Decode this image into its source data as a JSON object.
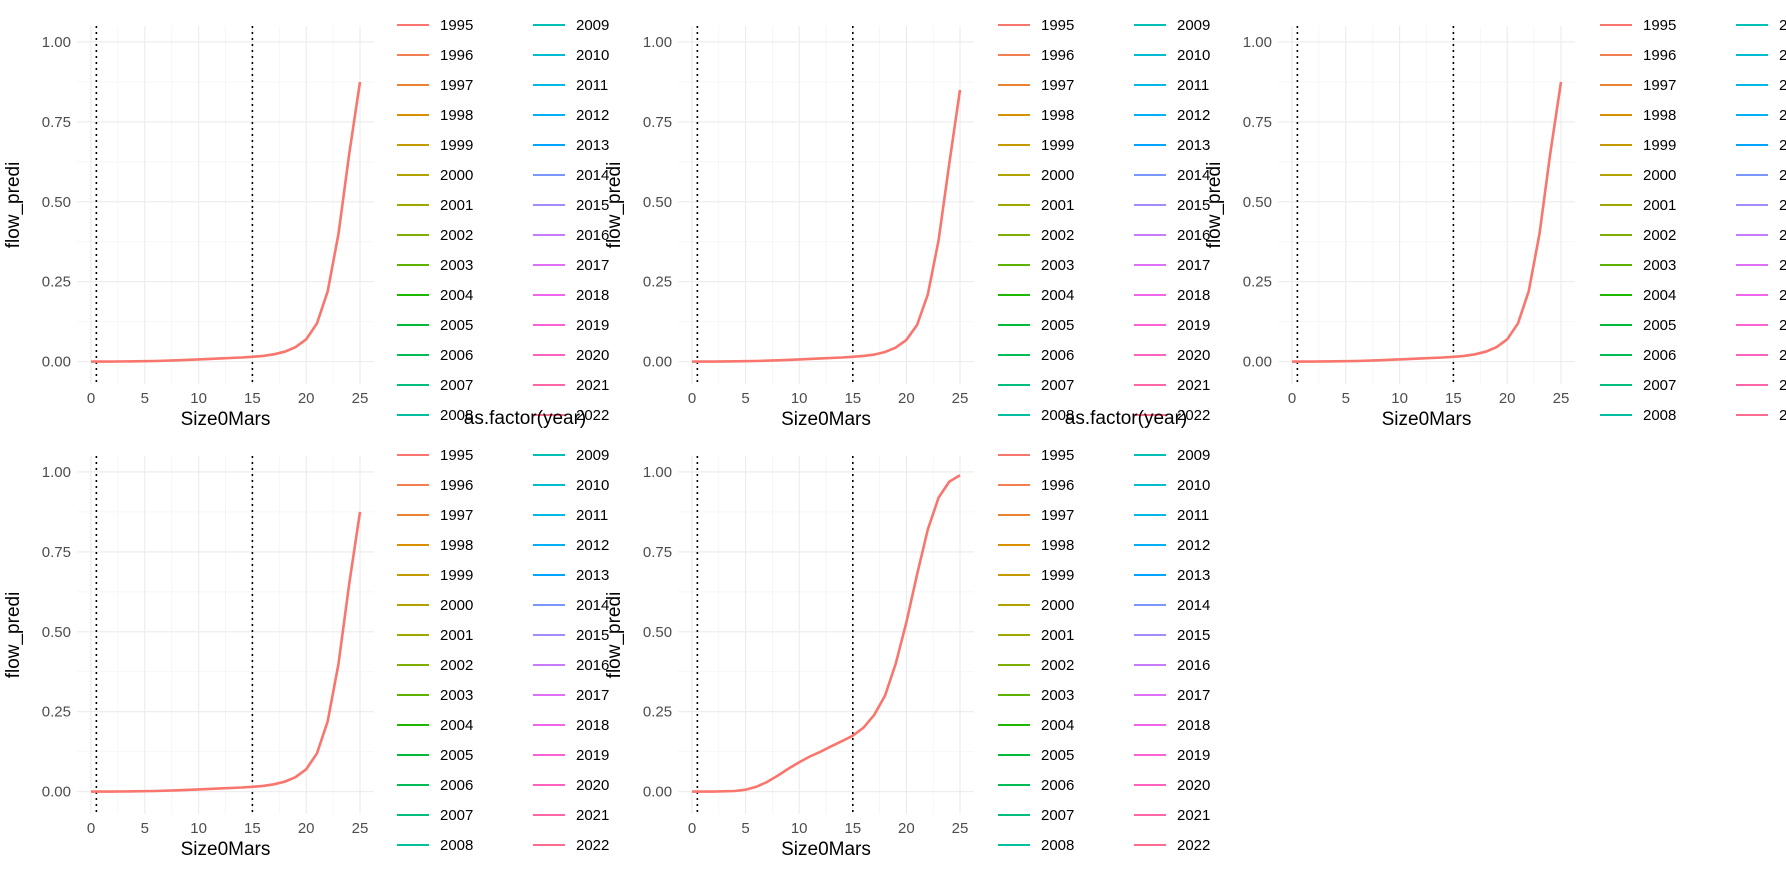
{
  "chart_data": [
    {
      "type": "line",
      "xlabel": "Size0Mars",
      "ylabel": "flow_predi",
      "xlim": [
        0,
        25
      ],
      "ylim": [
        0,
        1
      ],
      "xticks": [
        "0",
        "5",
        "10",
        "15",
        "20",
        "25"
      ],
      "yticks": [
        "0.00",
        "0.25",
        "0.50",
        "0.75",
        "1.00"
      ],
      "grid": true,
      "vlines": [
        0.5,
        15
      ],
      "series": [
        {
          "color": "#F8766D",
          "x": [
            0,
            2,
            4,
            6,
            8,
            10,
            12,
            14,
            15,
            16,
            17,
            18,
            19,
            20,
            21,
            22,
            23,
            24,
            25
          ],
          "y": [
            0,
            0,
            0.001,
            0.002,
            0.004,
            0.007,
            0.01,
            0.013,
            0.015,
            0.018,
            0.023,
            0.031,
            0.045,
            0.07,
            0.12,
            0.22,
            0.4,
            0.65,
            0.875
          ]
        }
      ]
    },
    {
      "type": "line",
      "xlabel": "Size0Mars",
      "ylabel": "flow_predi",
      "xlim": [
        0,
        25
      ],
      "ylim": [
        0,
        1
      ],
      "xticks": [
        "0",
        "5",
        "10",
        "15",
        "20",
        "25"
      ],
      "yticks": [
        "0.00",
        "0.25",
        "0.50",
        "0.75",
        "1.00"
      ],
      "grid": true,
      "vlines": [
        0.5,
        15
      ],
      "series": [
        {
          "color": "#F8766D",
          "x": [
            0,
            2,
            4,
            6,
            8,
            10,
            12,
            14,
            15,
            16,
            17,
            18,
            19,
            20,
            21,
            22,
            23,
            24,
            25
          ],
          "y": [
            0,
            0,
            0.001,
            0.002,
            0.004,
            0.007,
            0.01,
            0.013,
            0.015,
            0.018,
            0.022,
            0.03,
            0.044,
            0.068,
            0.115,
            0.21,
            0.38,
            0.62,
            0.85
          ]
        }
      ]
    },
    {
      "type": "line",
      "xlabel": "Size0Mars",
      "ylabel": "flow_predi",
      "xlim": [
        0,
        25
      ],
      "ylim": [
        0,
        1
      ],
      "xticks": [
        "0",
        "5",
        "10",
        "15",
        "20",
        "25"
      ],
      "yticks": [
        "0.00",
        "0.25",
        "0.50",
        "0.75",
        "1.00"
      ],
      "grid": true,
      "vlines": [
        0.5,
        15
      ],
      "series": [
        {
          "color": "#F8766D",
          "x": [
            0,
            2,
            4,
            6,
            8,
            10,
            12,
            14,
            15,
            16,
            17,
            18,
            19,
            20,
            21,
            22,
            23,
            24,
            25
          ],
          "y": [
            0,
            0,
            0.001,
            0.002,
            0.004,
            0.007,
            0.01,
            0.013,
            0.015,
            0.018,
            0.023,
            0.031,
            0.045,
            0.07,
            0.12,
            0.22,
            0.4,
            0.65,
            0.875
          ]
        }
      ]
    },
    {
      "type": "line",
      "xlabel": "Size0Mars",
      "ylabel": "flow_predi",
      "xlim": [
        0,
        25
      ],
      "ylim": [
        0,
        1
      ],
      "xticks": [
        "0",
        "5",
        "10",
        "15",
        "20",
        "25"
      ],
      "yticks": [
        "0.00",
        "0.25",
        "0.50",
        "0.75",
        "1.00"
      ],
      "grid": true,
      "vlines": [
        0.5,
        15
      ],
      "series": [
        {
          "color": "#F8766D",
          "x": [
            0,
            2,
            4,
            6,
            8,
            10,
            12,
            14,
            15,
            16,
            17,
            18,
            19,
            20,
            21,
            22,
            23,
            24,
            25
          ],
          "y": [
            0,
            0,
            0.001,
            0.002,
            0.004,
            0.007,
            0.01,
            0.013,
            0.015,
            0.018,
            0.023,
            0.031,
            0.045,
            0.07,
            0.12,
            0.22,
            0.4,
            0.65,
            0.875
          ]
        }
      ]
    },
    {
      "type": "line",
      "xlabel": "Size0Mars",
      "ylabel": "flow_predi",
      "xlim": [
        0,
        25
      ],
      "ylim": [
        0,
        1
      ],
      "xticks": [
        "0",
        "5",
        "10",
        "15",
        "20",
        "25"
      ],
      "yticks": [
        "0.00",
        "0.25",
        "0.50",
        "0.75",
        "1.00"
      ],
      "grid": true,
      "vlines": [
        0.5,
        15
      ],
      "series": [
        {
          "color": "#F8766D",
          "x": [
            0,
            2,
            4,
            5,
            6,
            7,
            8,
            9,
            10,
            11,
            12,
            13,
            14,
            15,
            16,
            17,
            18,
            19,
            20,
            21,
            22,
            23,
            24,
            25
          ],
          "y": [
            0,
            0,
            0.002,
            0.006,
            0.015,
            0.03,
            0.05,
            0.072,
            0.092,
            0.11,
            0.125,
            0.142,
            0.158,
            0.175,
            0.2,
            0.24,
            0.3,
            0.4,
            0.53,
            0.68,
            0.82,
            0.92,
            0.97,
            0.99
          ]
        }
      ]
    }
  ],
  "legend": {
    "title": "as.factor(year)",
    "items": [
      {
        "label": "1995",
        "color": "#F8766D"
      },
      {
        "label": "1996",
        "color": "#F27E52"
      },
      {
        "label": "1997",
        "color": "#EA8331"
      },
      {
        "label": "1998",
        "color": "#D89000"
      },
      {
        "label": "1999",
        "color": "#C49A00"
      },
      {
        "label": "2000",
        "color": "#B0A200"
      },
      {
        "label": "2001",
        "color": "#9AA800"
      },
      {
        "label": "2002",
        "color": "#7EAE00"
      },
      {
        "label": "2003",
        "color": "#5BB300"
      },
      {
        "label": "2004",
        "color": "#1FB700"
      },
      {
        "label": "2005",
        "color": "#00BA38"
      },
      {
        "label": "2006",
        "color": "#00BC56"
      },
      {
        "label": "2007",
        "color": "#00BF7D"
      },
      {
        "label": "2008",
        "color": "#00C09F"
      },
      {
        "label": "2009",
        "color": "#00BFB7"
      },
      {
        "label": "2010",
        "color": "#00BCD1"
      },
      {
        "label": "2011",
        "color": "#00B8E7"
      },
      {
        "label": "2012",
        "color": "#00B0F6"
      },
      {
        "label": "2013",
        "color": "#00A5FF"
      },
      {
        "label": "2014",
        "color": "#7997FF"
      },
      {
        "label": "2015",
        "color": "#A58AFF"
      },
      {
        "label": "2016",
        "color": "#C77CFF"
      },
      {
        "label": "2017",
        "color": "#DF70F8"
      },
      {
        "label": "2018",
        "color": "#F066EA"
      },
      {
        "label": "2019",
        "color": "#FC61D5"
      },
      {
        "label": "2020",
        "color": "#FF62BC"
      },
      {
        "label": "2021",
        "color": "#FF66A8"
      },
      {
        "label": "2022",
        "color": "#FF6C91"
      }
    ]
  }
}
